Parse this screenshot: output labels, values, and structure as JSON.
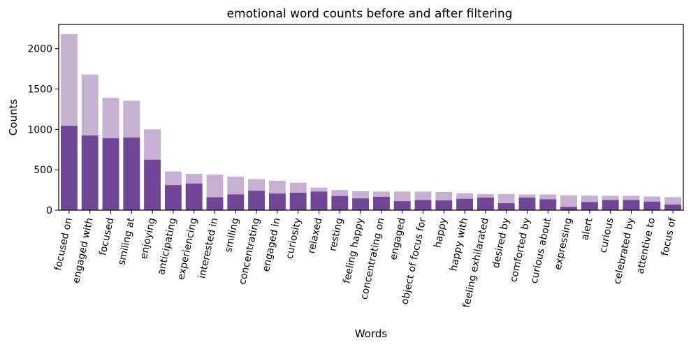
{
  "chart_data": {
    "type": "bar",
    "title": "emotional word counts before and after filtering",
    "xlabel": "Words",
    "ylabel": "Counts",
    "ylim": [
      0,
      2300
    ],
    "yticks": [
      0,
      500,
      1000,
      1500,
      2000
    ],
    "grid": false,
    "overlay": true,
    "colors": {
      "before": "#c7b1d3",
      "after": "#6f4796",
      "frame": "#000000"
    },
    "categories": [
      "focused on",
      "engaged with",
      "focused",
      "smiling at",
      "enjoying",
      "anticipating",
      "experiencing",
      "interested in",
      "smiling",
      "concentrating",
      "engaged in",
      "curiosity",
      "relaxed",
      "resting",
      "feeling happy",
      "concentrating on",
      "engaged",
      "object of focus for",
      "happy",
      "happy with",
      "feeling exhilarated",
      "desired by",
      "comforted by",
      "curious about",
      "expressing",
      "alert",
      "curious",
      "celebrated by",
      "attentive to",
      "focus of"
    ],
    "series": [
      {
        "values": [
          2180,
          1680,
          1390,
          1355,
          1000,
          480,
          450,
          440,
          415,
          385,
          365,
          340,
          280,
          250,
          235,
          230,
          230,
          230,
          225,
          210,
          200,
          200,
          195,
          195,
          185,
          180,
          178,
          178,
          168,
          160
        ]
      },
      {
        "values": [
          1045,
          925,
          890,
          900,
          625,
          310,
          330,
          160,
          195,
          240,
          205,
          215,
          230,
          175,
          145,
          165,
          110,
          125,
          120,
          140,
          155,
          85,
          155,
          135,
          40,
          100,
          125,
          125,
          105,
          70
        ]
      }
    ]
  }
}
